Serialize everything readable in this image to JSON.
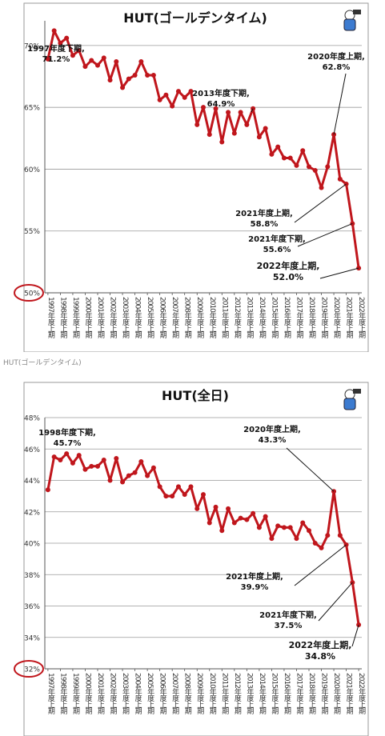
{
  "captions": [
    "HUT(ゴールデンタイム)"
  ],
  "chart_data": [
    {
      "type": "line",
      "title": "HUT(ゴールデンタイム)",
      "ylim": [
        50,
        72
      ],
      "yticks": [
        50,
        55,
        60,
        65,
        70
      ],
      "ytick_labels": [
        "50%",
        "55%",
        "60%",
        "65%",
        "70%"
      ],
      "highlight_tick": "50%",
      "grid": true,
      "categories": [
        "1997年度上期",
        "1997年度下期",
        "1998年度上期",
        "1998年度下期",
        "1999年度上期",
        "1999年度下期",
        "2000年度上期",
        "2000年度下期",
        "2001年度上期",
        "2001年度下期",
        "2002年度上期",
        "2002年度下期",
        "2003年度上期",
        "2003年度下期",
        "2004年度上期",
        "2004年度下期",
        "2005年度上期",
        "2005年度下期",
        "2006年度上期",
        "2006年度下期",
        "2007年度上期",
        "2007年度下期",
        "2008年度上期",
        "2008年度下期",
        "2009年度上期",
        "2009年度下期",
        "2010年度上期",
        "2010年度下期",
        "2011年度上期",
        "2011年度下期",
        "2012年度上期",
        "2012年度下期",
        "2013年度上期",
        "2013年度下期",
        "2014年度上期",
        "2014年度下期",
        "2015年度上期",
        "2015年度下期",
        "2016年度上期",
        "2016年度下期",
        "2017年度上期",
        "2017年度下期",
        "2018年度上期",
        "2018年度下期",
        "2019年度上期",
        "2019年度下期",
        "2020年度上期",
        "2020年度下期",
        "2021年度上期",
        "2021年度下期",
        "2022年度上期"
      ],
      "xtick_labels": [
        "1997年度上期",
        "1998年度上期",
        "1999年度上期",
        "2000年度上期",
        "2001年度上期",
        "2002年度上期",
        "2003年度上期",
        "2004年度上期",
        "2005年度上期",
        "2006年度上期",
        "2007年度上期",
        "2008年度上期",
        "2009年度上期",
        "2010年度上期",
        "2011年度上期",
        "2012年度上期",
        "2013年度上期",
        "2014年度上期",
        "2015年度上期",
        "2016年度上期",
        "2017年度上期",
        "2018年度上期",
        "2019年度上期",
        "2020年度上期",
        "2021年度上期",
        "2022年度上期"
      ],
      "values": [
        68.9,
        71.2,
        70.2,
        70.6,
        69.2,
        69.6,
        68.3,
        68.8,
        68.4,
        69.0,
        67.2,
        68.7,
        66.6,
        67.3,
        67.6,
        68.7,
        67.6,
        67.6,
        65.6,
        66.0,
        65.1,
        66.3,
        65.8,
        66.3,
        63.6,
        65.0,
        62.8,
        64.9,
        62.2,
        64.6,
        62.9,
        64.6,
        63.6,
        64.9,
        62.6,
        63.3,
        61.2,
        61.8,
        60.9,
        60.9,
        60.3,
        61.5,
        60.2,
        59.9,
        58.5,
        60.2,
        62.8,
        59.2,
        58.8,
        55.6,
        52.0
      ],
      "series_color": "#c0161c",
      "annotations": [
        {
          "index": 1,
          "lines": [
            "1997年度下期,",
            "71.2%"
          ]
        },
        {
          "index": 33,
          "lines": [
            "2013年度下期,",
            "64.9%"
          ]
        },
        {
          "index": 46,
          "lines": [
            "2020年度上期,",
            "62.8%"
          ]
        },
        {
          "index": 48,
          "lines": [
            "2021年度上期,",
            "58.8%"
          ]
        },
        {
          "index": 49,
          "lines": [
            "2021年度下期,",
            "55.6%"
          ]
        },
        {
          "index": 50,
          "lines": [
            "2022年度上期,",
            "52.0%"
          ]
        }
      ]
    },
    {
      "type": "line",
      "title": "HUT(全日)",
      "ylim": [
        32,
        48
      ],
      "yticks": [
        32,
        34,
        36,
        38,
        40,
        42,
        44,
        46,
        48
      ],
      "ytick_labels": [
        "32%",
        "34%",
        "36%",
        "38%",
        "40%",
        "42%",
        "44%",
        "46%",
        "48%"
      ],
      "highlight_tick": "32%",
      "grid": true,
      "categories": [
        "1997年度上期",
        "1997年度下期",
        "1998年度上期",
        "1998年度下期",
        "1999年度上期",
        "1999年度下期",
        "2000年度上期",
        "2000年度下期",
        "2001年度上期",
        "2001年度下期",
        "2002年度上期",
        "2002年度下期",
        "2003年度上期",
        "2003年度下期",
        "2004年度上期",
        "2004年度下期",
        "2005年度上期",
        "2005年度下期",
        "2006年度上期",
        "2006年度下期",
        "2007年度上期",
        "2007年度下期",
        "2008年度上期",
        "2008年度下期",
        "2009年度上期",
        "2009年度下期",
        "2010年度上期",
        "2010年度下期",
        "2011年度上期",
        "2011年度下期",
        "2012年度上期",
        "2012年度下期",
        "2013年度上期",
        "2013年度下期",
        "2014年度上期",
        "2014年度下期",
        "2015年度上期",
        "2015年度下期",
        "2016年度上期",
        "2016年度下期",
        "2017年度上期",
        "2017年度下期",
        "2018年度上期",
        "2018年度下期",
        "2019年度上期",
        "2019年度下期",
        "2020年度上期",
        "2020年度下期",
        "2021年度上期",
        "2021年度下期",
        "2022年度上期"
      ],
      "xtick_labels": [
        "1997年度上期",
        "1998年度上期",
        "1999年度上期",
        "2000年度上期",
        "2001年度上期",
        "2002年度上期",
        "2003年度上期",
        "2004年度上期",
        "2005年度上期",
        "2006年度上期",
        "2007年度上期",
        "2008年度上期",
        "2009年度上期",
        "2010年度上期",
        "2011年度上期",
        "2012年度上期",
        "2013年度上期",
        "2014年度上期",
        "2015年度上期",
        "2016年度上期",
        "2017年度上期",
        "2018年度上期",
        "2019年度上期",
        "2020年度上期",
        "2021年度上期",
        "2022年度上期"
      ],
      "values": [
        43.4,
        45.5,
        45.3,
        45.7,
        45.1,
        45.6,
        44.7,
        44.9,
        44.9,
        45.3,
        44.0,
        45.4,
        43.9,
        44.3,
        44.5,
        45.2,
        44.3,
        44.8,
        43.6,
        43.0,
        43.0,
        43.6,
        43.1,
        43.6,
        42.2,
        43.1,
        41.3,
        42.3,
        40.8,
        42.2,
        41.3,
        41.6,
        41.5,
        41.9,
        41.0,
        41.7,
        40.3,
        41.1,
        41.0,
        41.0,
        40.3,
        41.3,
        40.8,
        40.0,
        39.7,
        40.5,
        43.3,
        40.5,
        39.9,
        37.5,
        34.8
      ],
      "series_color": "#c0161c",
      "annotations": [
        {
          "index": 3,
          "lines": [
            "1998年度下期,",
            "45.7%"
          ]
        },
        {
          "index": 46,
          "lines": [
            "2020年度上期,",
            "43.3%"
          ]
        },
        {
          "index": 48,
          "lines": [
            "2021年度上期,",
            "39.9%"
          ]
        },
        {
          "index": 49,
          "lines": [
            "2021年度下期,",
            "37.5%"
          ]
        },
        {
          "index": 50,
          "lines": [
            "2022年度上期,",
            "34.8%"
          ]
        }
      ]
    }
  ]
}
